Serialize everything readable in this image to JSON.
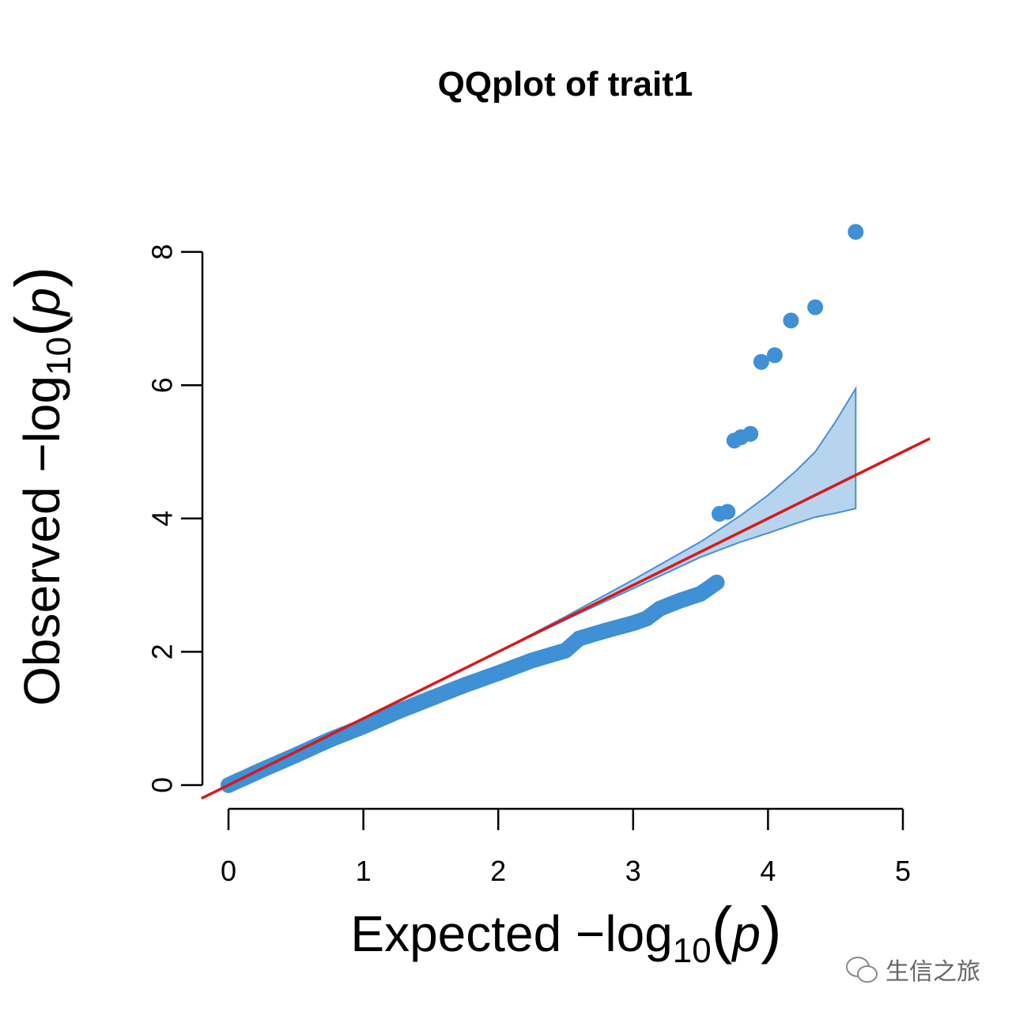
{
  "chart_data": {
    "type": "scatter",
    "title": "QQplot of trait1",
    "xlabel": {
      "prefix": "Expected  −log",
      "sub": "10",
      "open": "(",
      "var": "p",
      "close": ")"
    },
    "ylabel": {
      "prefix": "Observed  −log",
      "sub": "10",
      "open": "(",
      "var": "p",
      "close": ")"
    },
    "xlim": [
      0,
      5
    ],
    "ylim": [
      0,
      8
    ],
    "xticks": [
      "0",
      "1",
      "2",
      "3",
      "4",
      "5"
    ],
    "yticks": [
      "0",
      "2",
      "4",
      "6",
      "8"
    ],
    "point_color": "#3f90d4",
    "line_color": "#d7191c",
    "band_fill": "#b7d4ee",
    "band_edge": "#4a8fcf",
    "reference_line": {
      "slope": 1,
      "intercept": 0
    },
    "points_curve": [
      [
        0.0,
        0.0
      ],
      [
        0.25,
        0.23
      ],
      [
        0.5,
        0.45
      ],
      [
        0.75,
        0.68
      ],
      [
        1.0,
        0.88
      ],
      [
        1.25,
        1.1
      ],
      [
        1.5,
        1.3
      ],
      [
        1.75,
        1.5
      ],
      [
        2.0,
        1.68
      ],
      [
        2.25,
        1.87
      ],
      [
        2.5,
        2.02
      ],
      [
        2.6,
        2.2
      ],
      [
        2.8,
        2.32
      ],
      [
        3.0,
        2.43
      ],
      [
        3.1,
        2.5
      ],
      [
        3.2,
        2.65
      ],
      [
        3.35,
        2.77
      ],
      [
        3.5,
        2.87
      ],
      [
        3.62,
        3.04
      ]
    ],
    "points_outliers": [
      [
        3.64,
        4.07
      ],
      [
        3.7,
        4.1
      ],
      [
        3.75,
        5.17
      ],
      [
        3.8,
        5.22
      ],
      [
        3.87,
        5.27
      ],
      [
        3.95,
        6.35
      ],
      [
        4.05,
        6.45
      ],
      [
        4.17,
        6.97
      ],
      [
        4.35,
        7.17
      ],
      [
        4.65,
        8.3
      ]
    ],
    "confidence_band": {
      "x": [
        0.0,
        1.0,
        2.0,
        2.5,
        3.0,
        3.5,
        3.8,
        4.0,
        4.2,
        4.35,
        4.5,
        4.65
      ],
      "upper": [
        0.0,
        1.0,
        2.0,
        2.53,
        3.08,
        3.65,
        4.05,
        4.35,
        4.7,
        5.0,
        5.45,
        5.95
      ],
      "lower": [
        0.0,
        1.0,
        2.0,
        2.48,
        2.95,
        3.42,
        3.65,
        3.78,
        3.92,
        4.02,
        4.08,
        4.15
      ]
    }
  },
  "watermark": {
    "text": "生信之旅",
    "icon": "wechat-icon"
  }
}
